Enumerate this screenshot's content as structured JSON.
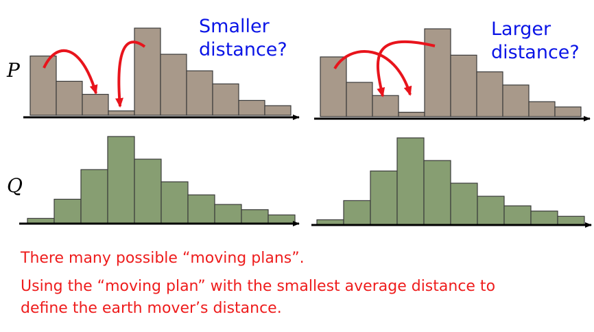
{
  "labels": {
    "p": "P",
    "q": "Q"
  },
  "annotations": {
    "smaller": {
      "line1": "Smaller",
      "line2": "distance?"
    },
    "larger": {
      "line1": "Larger",
      "line2": "distance?"
    }
  },
  "captions": {
    "line1": "There many possible “moving plans”.",
    "line2": "Using the “moving plan” with the smallest average distance to",
    "line3": "define the earth mover’s distance."
  },
  "colors": {
    "p_bar": "#a8998a",
    "q_bar": "#879e72",
    "bar_stroke": "#3a3a3a",
    "arrow": "#e8141c",
    "annotation_text": "#0a14e6",
    "caption_text": "#ee1c1c",
    "axis": "#000000"
  },
  "chart_data": [
    {
      "type": "bar",
      "name": "P-left",
      "values": [
        0.68,
        0.39,
        0.24,
        0.05,
        1.0,
        0.7,
        0.51,
        0.36,
        0.17,
        0.11
      ],
      "ylim": [
        0,
        1
      ]
    },
    {
      "type": "bar",
      "name": "P-right",
      "values": [
        0.68,
        0.39,
        0.24,
        0.05,
        1.0,
        0.7,
        0.51,
        0.36,
        0.17,
        0.11
      ],
      "ylim": [
        0,
        1
      ]
    },
    {
      "type": "bar",
      "name": "Q-left",
      "values": [
        0.06,
        0.28,
        0.62,
        1.0,
        0.74,
        0.48,
        0.33,
        0.22,
        0.16,
        0.1
      ],
      "ylim": [
        0,
        1
      ]
    },
    {
      "type": "bar",
      "name": "Q-right",
      "values": [
        0.06,
        0.28,
        0.62,
        1.0,
        0.74,
        0.48,
        0.33,
        0.22,
        0.16,
        0.1
      ],
      "ylim": [
        0,
        1
      ]
    }
  ]
}
